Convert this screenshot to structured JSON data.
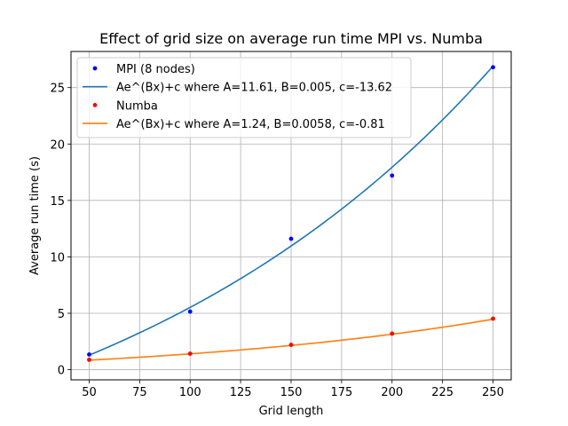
{
  "chart_data": {
    "type": "scatter",
    "title": "Effect of grid size on average run time MPI vs. Numba",
    "xlabel": "Grid length",
    "ylabel": "Average run time (s)",
    "xlim": [
      41,
      259
    ],
    "ylim": [
      -0.9,
      28.2
    ],
    "xticks": [
      50,
      75,
      100,
      125,
      150,
      175,
      200,
      225,
      250
    ],
    "yticks": [
      0,
      5,
      10,
      15,
      20,
      25
    ],
    "grid": true,
    "legend_position": "upper-left",
    "series": [
      {
        "name": "MPI (8 nodes)",
        "kind": "points",
        "color": "#0000ff",
        "x": [
          50,
          100,
          150,
          200,
          250
        ],
        "y": [
          1.35,
          5.15,
          11.6,
          17.2,
          26.8
        ]
      },
      {
        "name": "Ae^(Bx)+c where A=11.61, B=0.005, c=-13.62",
        "kind": "fit",
        "color": "#1f77b4",
        "A": 11.61,
        "B": 0.005,
        "c": -13.62,
        "x_range": [
          50,
          250
        ]
      },
      {
        "name": "Numba",
        "kind": "points",
        "color": "#ff0000",
        "x": [
          50,
          100,
          150,
          200,
          250
        ],
        "y": [
          0.88,
          1.42,
          2.2,
          3.2,
          4.52
        ]
      },
      {
        "name": "Ae^(Bx)+c where A=1.24, B=0.0058, c=-0.81",
        "kind": "fit",
        "color": "#ff7f0e",
        "A": 1.24,
        "B": 0.0058,
        "c": -0.81,
        "x_range": [
          50,
          250
        ]
      }
    ]
  }
}
